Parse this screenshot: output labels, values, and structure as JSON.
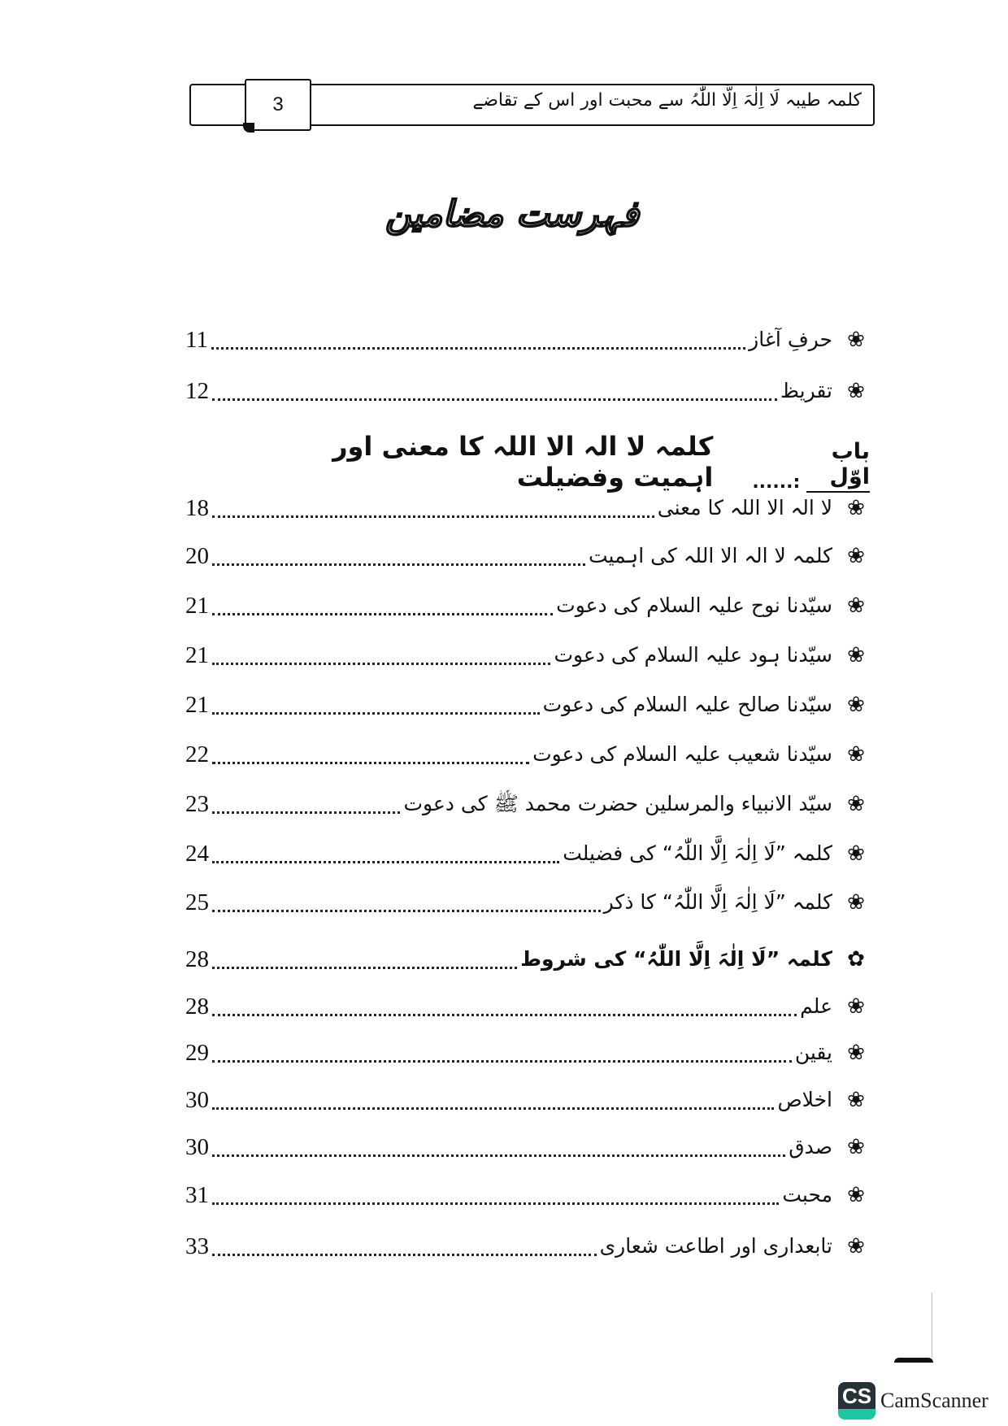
{
  "header": {
    "running_title": "کلمہ طیبہ لَا اِلٰہَ اِلَّا اللّٰہُ سے محبت اور اس کے تقاضے",
    "page_number": "3"
  },
  "page_title": "فہرست مضامین",
  "entries_top": [
    {
      "title": "حرفِ آغاز",
      "page": "11"
    },
    {
      "title": "تقریظ",
      "page": "12"
    }
  ],
  "chapter": {
    "label": "باب اوّل",
    "separator": ":......",
    "title": "کلمہ لا الہ الا اللہ کا معنی اور اہمیت وفضیلت"
  },
  "entries": [
    {
      "title": "لا الہ الا اللہ کا معنی",
      "page": "18"
    },
    {
      "title": "کلمہ لا الہ الا اللہ کی اہمیت",
      "page": "20"
    },
    {
      "title": "سیّدنا نوح علیہ السلام کی دعوت",
      "page": "21"
    },
    {
      "title": "سیّدنا ہود علیہ السلام کی دعوت",
      "page": "21"
    },
    {
      "title": "سیّدنا صالح علیہ السلام کی دعوت",
      "page": "21"
    },
    {
      "title": "سیّدنا شعیب علیہ السلام کی دعوت",
      "page": "22"
    },
    {
      "title": "سیّد الانبیاء والمرسلین حضرت محمد ﷺ کی دعوت",
      "page": "23"
    },
    {
      "title": "کلمہ ”لَا اِلٰہَ اِلَّا اللّٰہُ“ کی فضیلت",
      "page": "24"
    },
    {
      "title": "کلمہ ”لَا اِلٰہَ اِلَّا اللّٰہُ“ کا ذکر",
      "page": "25"
    },
    {
      "title": "کلمہ ”لَا اِلٰہَ اِلَّا اللّٰہُ“ کی شروط",
      "page": "28",
      "bold": true
    },
    {
      "title": "علم",
      "page": "28"
    },
    {
      "title": "یقین",
      "page": "29"
    },
    {
      "title": "اخلاص",
      "page": "30"
    },
    {
      "title": "صدق",
      "page": "30"
    },
    {
      "title": "محبت",
      "page": "31"
    },
    {
      "title": "تابعداری اور اطاعت شعاری",
      "page": "33"
    }
  ],
  "bullet_icon": "flower-icon",
  "watermark": {
    "logo_text": "CS",
    "text": "CamScanner"
  }
}
